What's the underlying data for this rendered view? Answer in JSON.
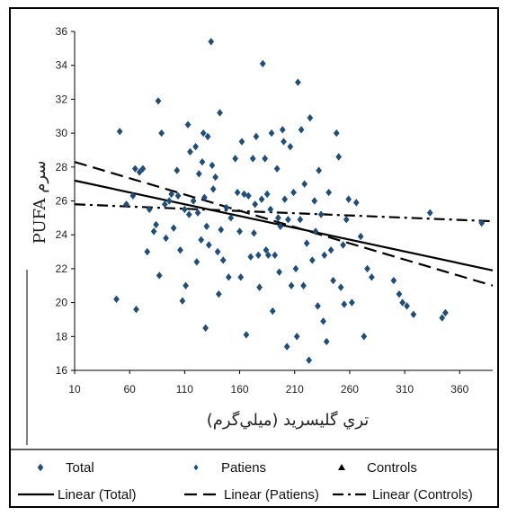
{
  "chart_data": {
    "type": "scatter",
    "xlabel": "تري گليسريد (ميلي‌گرم)",
    "ylabel": "PUFA سرم",
    "xlim": [
      10,
      390
    ],
    "ylim": [
      16,
      36
    ],
    "x_ticks": [
      10,
      60,
      110,
      160,
      210,
      260,
      310,
      360
    ],
    "x_tick_labels": [
      "10",
      "60",
      "110",
      "160",
      "210",
      "260",
      "310",
      "360"
    ],
    "y_ticks": [
      16,
      18,
      20,
      22,
      24,
      26,
      28,
      30,
      32,
      34,
      36
    ],
    "y_tick_labels": [
      "16",
      "18",
      "20",
      "22",
      "24",
      "26",
      "28",
      "30",
      "32",
      "34",
      "36"
    ],
    "grid": false,
    "legend_position": "bottom",
    "series": [
      {
        "name": "Total",
        "marker": "diamond",
        "color": "#1f4e79",
        "points": [
          [
            48,
            20.2
          ],
          [
            51,
            30.1
          ],
          [
            57,
            25.8
          ],
          [
            63,
            26.3
          ],
          [
            65,
            27.9
          ],
          [
            66,
            19.6
          ],
          [
            69,
            27.7
          ],
          [
            72,
            27.9
          ],
          [
            76,
            23
          ],
          [
            78,
            25.5
          ],
          [
            82,
            24.2
          ],
          [
            84,
            24.6
          ],
          [
            86,
            31.9
          ],
          [
            87,
            21.6
          ],
          [
            89,
            30
          ],
          [
            92,
            25.8
          ],
          [
            93,
            23.8
          ],
          [
            96,
            26
          ],
          [
            98,
            26.4
          ],
          [
            100,
            24.4
          ],
          [
            103,
            27.8
          ],
          [
            104,
            26.3
          ],
          [
            106,
            23.1
          ],
          [
            108,
            20.1
          ],
          [
            110,
            25.5
          ],
          [
            111,
            21
          ],
          [
            113,
            30.5
          ],
          [
            114,
            25.2
          ],
          [
            115,
            28.9
          ],
          [
            118,
            26
          ],
          [
            120,
            29.2
          ],
          [
            121,
            22.4
          ],
          [
            122,
            25.3
          ],
          [
            123,
            27.6
          ],
          [
            125,
            23.7
          ],
          [
            126,
            28.3
          ],
          [
            127,
            30
          ],
          [
            128,
            26.2
          ],
          [
            129,
            18.5
          ],
          [
            130,
            24.5
          ],
          [
            131,
            29.8
          ],
          [
            132,
            23.4
          ],
          [
            134,
            35.4
          ],
          [
            135,
            28.1
          ],
          [
            136,
            26.7
          ],
          [
            138,
            27.4
          ],
          [
            140,
            23
          ],
          [
            141,
            20.5
          ],
          [
            142,
            31.2
          ],
          [
            143,
            24.3
          ],
          [
            145,
            22.5
          ],
          [
            148,
            25.6
          ],
          [
            150,
            21.5
          ],
          [
            152,
            25
          ],
          [
            156,
            28.5
          ],
          [
            158,
            26.5
          ],
          [
            160,
            24.2
          ],
          [
            161,
            21.5
          ],
          [
            162,
            29.5
          ],
          [
            164,
            26.4
          ],
          [
            166,
            18.1
          ],
          [
            168,
            26.3
          ],
          [
            170,
            22.7
          ],
          [
            172,
            28.5
          ],
          [
            173,
            24.1
          ],
          [
            174,
            25.8
          ],
          [
            175,
            29.8
          ],
          [
            177,
            22.8
          ],
          [
            178,
            20.9
          ],
          [
            180,
            26.1
          ],
          [
            181,
            34.1
          ],
          [
            183,
            28.5
          ],
          [
            184,
            23.1
          ],
          [
            185,
            26.4
          ],
          [
            186,
            22.8
          ],
          [
            188,
            25.5
          ],
          [
            189,
            30
          ],
          [
            190,
            19.5
          ],
          [
            192,
            22.8
          ],
          [
            194,
            27.9
          ],
          [
            195,
            25
          ],
          [
            196,
            21.8
          ],
          [
            197,
            24.5
          ],
          [
            199,
            30.2
          ],
          [
            200,
            29.5
          ],
          [
            201,
            26.1
          ],
          [
            203,
            17.4
          ],
          [
            204,
            24.9
          ],
          [
            206,
            29.2
          ],
          [
            207,
            21
          ],
          [
            209,
            26.5
          ],
          [
            211,
            22
          ],
          [
            212,
            18
          ],
          [
            213,
            33
          ],
          [
            215,
            24.9
          ],
          [
            216,
            30.2
          ],
          [
            218,
            21
          ],
          [
            219,
            27
          ],
          [
            221,
            23.5
          ],
          [
            223,
            16.6
          ],
          [
            224,
            30.9
          ],
          [
            226,
            22.5
          ],
          [
            228,
            26
          ],
          [
            229,
            24.2
          ],
          [
            231,
            19.8
          ],
          [
            232,
            27.8
          ],
          [
            234,
            25.2
          ],
          [
            236,
            18.9
          ],
          [
            237,
            22.8
          ],
          [
            239,
            17.7
          ],
          [
            241,
            26.5
          ],
          [
            243,
            23.1
          ],
          [
            245,
            21.3
          ],
          [
            248,
            30
          ],
          [
            250,
            28.6
          ],
          [
            252,
            20.9
          ],
          [
            254,
            23.4
          ],
          [
            255,
            19.9
          ],
          [
            257,
            24.9
          ],
          [
            259,
            26.1
          ],
          [
            262,
            20
          ],
          [
            266,
            25.9
          ],
          [
            270,
            23.9
          ],
          [
            273,
            18
          ],
          [
            276,
            22
          ],
          [
            280,
            21.5
          ],
          [
            300,
            21.3
          ],
          [
            305,
            20.5
          ],
          [
            308,
            20
          ],
          [
            312,
            19.8
          ],
          [
            318,
            19.3
          ],
          [
            333,
            25.3
          ],
          [
            344,
            19.1
          ],
          [
            347,
            19.4
          ],
          [
            380,
            24.7
          ]
        ]
      },
      {
        "name": "Patiens",
        "marker": "diamond-small",
        "color": "#1f4e79",
        "points": []
      },
      {
        "name": "Controls",
        "marker": "triangle",
        "color": "#000000",
        "points": []
      },
      {
        "name": "Linear (Total)",
        "type": "line",
        "style": "solid",
        "color": "#000000",
        "points": [
          [
            10,
            27.2
          ],
          [
            390,
            21.9
          ]
        ]
      },
      {
        "name": "Linear (Patiens)",
        "type": "line",
        "style": "dashed",
        "color": "#000000",
        "points": [
          [
            10,
            28.3
          ],
          [
            390,
            21
          ]
        ]
      },
      {
        "name": "Linear (Controls)",
        "type": "line",
        "style": "dashdot",
        "color": "#000000",
        "points": [
          [
            10,
            25.8
          ],
          [
            390,
            24.8
          ]
        ]
      }
    ],
    "legend": {
      "row1": [
        "Total",
        "Patiens",
        "Controls"
      ],
      "row2": [
        "Linear (Total)",
        "Linear (Patiens)",
        "Linear (Controls)"
      ]
    }
  }
}
